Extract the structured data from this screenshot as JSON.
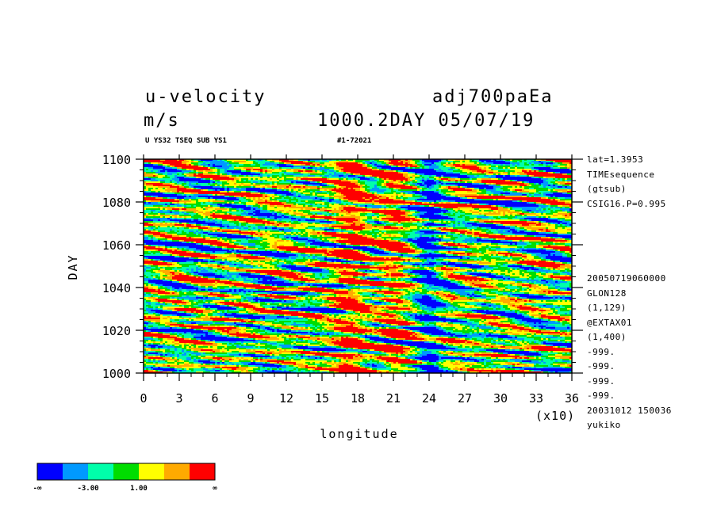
{
  "header": {
    "title_left": "u-velocity",
    "title_right": "adj700paEa",
    "units": "m/s",
    "time_stamp": "1000.2DAY 05/07/19",
    "dataset_line": "U YS32 TSEQ SUB YS1",
    "run_id": "#1-72021"
  },
  "side_info": {
    "top": [
      "lat=1.3953",
      "TIMEsequence",
      "(gtsub)",
      "CSIG16.P=0.995"
    ],
    "bottom": [
      "20050719060000",
      "GLON128",
      "(1,129)",
      "@EXTAX01",
      "(1,400)",
      "-999.",
      "-999.",
      "-999.",
      "-999.",
      "20031012 150036",
      "yukiko"
    ]
  },
  "chart_data": {
    "type": "heatmap",
    "title": "u-velocity",
    "xlabel": "longitude",
    "ylabel": "DAY",
    "x_multiplier_label": "(x10)",
    "xlim": [
      0,
      36
    ],
    "ylim": [
      1000,
      1100
    ],
    "x_ticks": [
      "0",
      "3",
      "6",
      "9",
      "12",
      "15",
      "18",
      "21",
      "24",
      "27",
      "30",
      "33",
      "36"
    ],
    "y_ticks": [
      "1000",
      "1020",
      "1040",
      "1060",
      "1080",
      "1100"
    ],
    "x_tick_values": [
      0,
      3,
      6,
      9,
      12,
      15,
      18,
      21,
      24,
      27,
      30,
      33,
      36
    ],
    "y_tick_values": [
      1000,
      1020,
      1040,
      1060,
      1080,
      1100
    ],
    "colorbar": {
      "colors": [
        "#0000ff",
        "#0099ff",
        "#00ffaa",
        "#00dd00",
        "#ffff00",
        "#ffaa00",
        "#ff0000"
      ],
      "labels": [
        "-∞",
        "-3.00",
        "1.00",
        "∞"
      ]
    },
    "features": [
      {
        "description": "positive (red) band",
        "x": 17.5
      },
      {
        "description": "positive (red) band",
        "x": 21.0
      },
      {
        "description": "negative (blue) band",
        "x": 24.0
      }
    ]
  }
}
